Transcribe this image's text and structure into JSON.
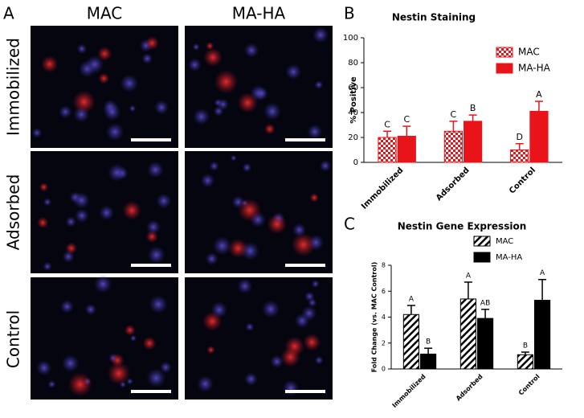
{
  "figure": {
    "panel_labels": [
      "A",
      "B",
      "C"
    ],
    "columns": [
      "MAC",
      "MA-HA"
    ],
    "rows": [
      "Immobilized",
      "Adsorbed",
      "Control"
    ]
  },
  "chart_data": [
    {
      "type": "bar",
      "title": "Nestin Staining",
      "y_label": "% Positive",
      "categories": [
        "Immobilized",
        "Adsorbed",
        "Control"
      ],
      "series": [
        {
          "name": "MAC",
          "color": "#e8141a",
          "fill_pattern": "checker",
          "values": [
            20,
            25,
            10
          ],
          "errors": [
            5,
            8,
            5
          ],
          "letters": [
            "C",
            "C",
            "D"
          ]
        },
        {
          "name": "MA-HA",
          "color": "#e8141a",
          "fill_pattern": "solid",
          "values": [
            21,
            33,
            41
          ],
          "errors": [
            8,
            5,
            8
          ],
          "letters": [
            "C",
            "B",
            "A"
          ]
        }
      ],
      "ylim": [
        0,
        100
      ],
      "yticks": [
        0,
        20,
        40,
        60,
        80,
        100
      ],
      "legend": "top-right"
    },
    {
      "type": "bar",
      "title": "Nestin Gene Expression",
      "y_label": "Fold Change (vs. MAC Control)",
      "categories": [
        "Immobilized",
        "Adsorbed",
        "Control"
      ],
      "series": [
        {
          "name": "MAC",
          "color": "#000000",
          "fill_pattern": "hatch",
          "values": [
            4.2,
            5.4,
            1.1
          ],
          "errors": [
            0.7,
            1.3,
            0.2
          ],
          "letters": [
            "A",
            "A",
            "B"
          ]
        },
        {
          "name": "MA-HA",
          "color": "#000000",
          "fill_pattern": "solid",
          "values": [
            1.15,
            3.9,
            5.3
          ],
          "errors": [
            0.45,
            0.7,
            1.6
          ],
          "letters": [
            "B",
            "AB",
            "A"
          ]
        }
      ],
      "ylim": [
        0,
        8
      ],
      "yticks": [
        0,
        2,
        4,
        6,
        8
      ],
      "legend": "top-right"
    }
  ]
}
